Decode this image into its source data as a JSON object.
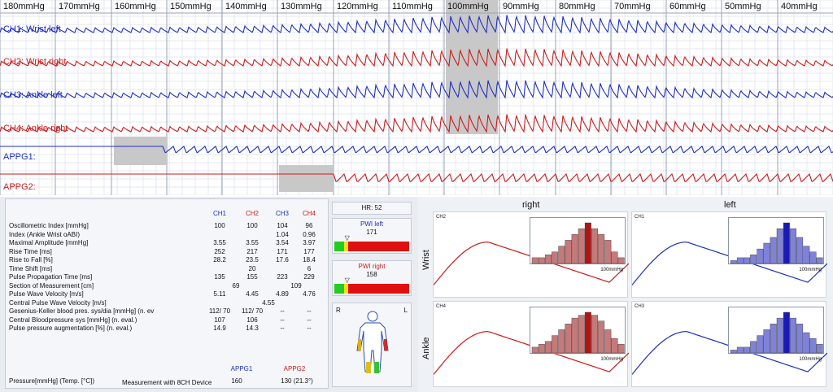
{
  "colors": {
    "blue": "#1f2fc2",
    "red": "#cc1b1b",
    "red_fill": "#c47a7a",
    "red_sel": "#b01515",
    "blue_fill": "#7f82d6",
    "blue_sel": "#1a1ab8"
  },
  "waveform": {
    "pressure_labels": [
      "180mmHg",
      "170mmHg",
      "160mmHg",
      "150mmHg",
      "140mmHg",
      "130mmHg",
      "120mmHg",
      "110mmHg",
      "100mmHg",
      "90mmHg",
      "80mmHg",
      "70mmHg",
      "60mmHg",
      "50mmHg",
      "40mmHg"
    ],
    "channels": [
      {
        "label": "CH1: Wrist left",
        "color": "blue"
      },
      {
        "label": "CH2: Wrist right",
        "color": "red"
      },
      {
        "label": "CH3: Ankle left",
        "color": "blue"
      },
      {
        "label": "CH4: Ankle right",
        "color": "red"
      },
      {
        "label": "APPG1:",
        "color": "blue"
      },
      {
        "label": "APPG2:",
        "color": "red"
      }
    ],
    "selected_pressure": "100mmHg"
  },
  "table": {
    "headers": [
      "CH1",
      "CH2",
      "CH3",
      "CH4"
    ],
    "rows": [
      {
        "label": "Oscillometric Index [mmHg]",
        "values": [
          "100",
          "100",
          "104",
          "96"
        ]
      },
      {
        "label": "Index (Ankle Wrist oABI)",
        "values": [
          "",
          "",
          "1.04",
          "0.96"
        ]
      },
      {
        "label": "Maximal Amplitude [mmHg]",
        "values": [
          "3.55",
          "3.55",
          "3.54",
          "3.97"
        ]
      },
      {
        "label": "Rise Time [ms]",
        "values": [
          "252",
          "217",
          "171",
          "177"
        ]
      },
      {
        "label": "Rise to Fall [%]",
        "values": [
          "28.2",
          "23.5",
          "17.6",
          "18.4"
        ]
      },
      {
        "label": "Time Shift [ms]",
        "values": [
          "",
          "20",
          "",
          "6"
        ]
      },
      {
        "label": "Pulse Propagation Time [ms]",
        "values": [
          "135",
          "155",
          "223",
          "229"
        ]
      },
      {
        "label": "Section of Measurement [cm]",
        "values": [
          "69",
          "",
          "109",
          ""
        ]
      },
      {
        "label": "Pulse Wave Velocity [m/s]",
        "values": [
          "5.11",
          "4.45",
          "4.89",
          "4.76"
        ]
      },
      {
        "label": "Central Pulse Wave Velocity [m/s]",
        "values": [
          "",
          "4.55",
          "",
          ""
        ]
      },
      {
        "label": "Gesenius-Keller blood pres. sys/dia [mmHg] (n. ev",
        "values": [
          "112/ 70",
          "112/ 70",
          "--",
          "--"
        ]
      },
      {
        "label": "Central Bloodpressure sys [mmHg] (n. eval.)",
        "values": [
          "107",
          "106",
          "--",
          "--"
        ]
      },
      {
        "label": "Pulse pressure augmentation [%] (n. eval.)",
        "values": [
          "14.9",
          "14.3",
          "--",
          "--"
        ]
      }
    ],
    "appg_headers": [
      "APPG1",
      "APPG2"
    ],
    "pressure_label": "Pressure[mmHg] (Temp. [°C])",
    "device_label": "Measurement with 8CH Device",
    "appg_values": [
      "160",
      "130 (21.3°)"
    ]
  },
  "hr": {
    "label": "HR:",
    "value": "52"
  },
  "pwi_left": {
    "title": "PWI left",
    "value": "171",
    "level": 0.17
  },
  "pwi_right": {
    "title": "PWI right",
    "value": "158",
    "level": 0.17
  },
  "body_figure": {
    "left_label": "R",
    "right_label": "L"
  },
  "pulse_charts": {
    "col_titles": [
      "right",
      "left"
    ],
    "row_titles": [
      "Wrist",
      "Ankle"
    ],
    "panels": [
      {
        "channel": "CH2",
        "color": "red",
        "unit": "100mmHg",
        "bars": [
          2,
          2,
          3,
          4,
          6,
          8,
          10,
          12,
          14,
          12,
          10,
          8,
          4,
          2
        ],
        "selected": 8
      },
      {
        "channel": "CH1",
        "color": "blue",
        "unit": "100mmHg",
        "bars": [
          1,
          2,
          2,
          3,
          5,
          7,
          9,
          12,
          14,
          12,
          9,
          6,
          4,
          2
        ],
        "selected": 8
      },
      {
        "channel": "CH4",
        "color": "red",
        "unit": "100mmHg",
        "bars": [
          2,
          3,
          4,
          6,
          8,
          10,
          12,
          13,
          14,
          13,
          11,
          8,
          5,
          3
        ],
        "selected": 8
      },
      {
        "channel": "CH3",
        "color": "blue",
        "unit": "100mmHg",
        "bars": [
          1,
          2,
          2,
          4,
          6,
          8,
          10,
          12,
          14,
          12,
          10,
          7,
          5,
          3
        ],
        "selected": 8
      }
    ]
  }
}
